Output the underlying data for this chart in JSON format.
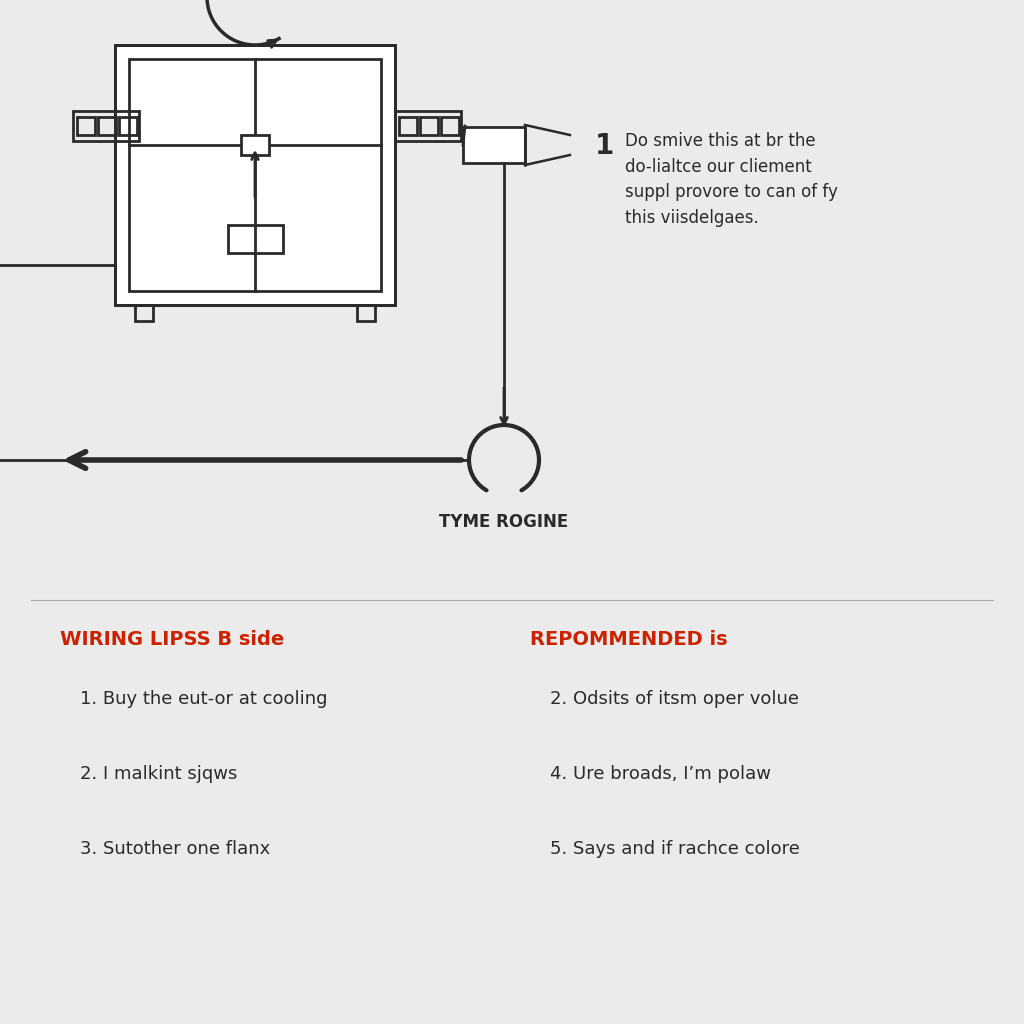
{
  "bg_color": "#ebebeb",
  "white": "#ffffff",
  "line_color": "#2a2a2a",
  "red_color": "#cc2200",
  "annotation_number": "1",
  "annotation_text": "Do smive this at br the\ndo-lialtce our cliement\nsuppl provore to can of fy\nthis viisdelgaes.",
  "fan_label": "TYME ROGINE",
  "left_heading": "WIRING LIPSS B side",
  "right_heading": "REPOMMENDED is",
  "left_items": [
    "1. Buy the eut-or at cooling",
    "2. I malkint sjqws",
    "3. Sutother one flanx"
  ],
  "right_items": [
    "2. Odsits of itsm oper volue",
    "4. Ure broads, I’m polaw",
    "5. Says and if rachce colore"
  ]
}
